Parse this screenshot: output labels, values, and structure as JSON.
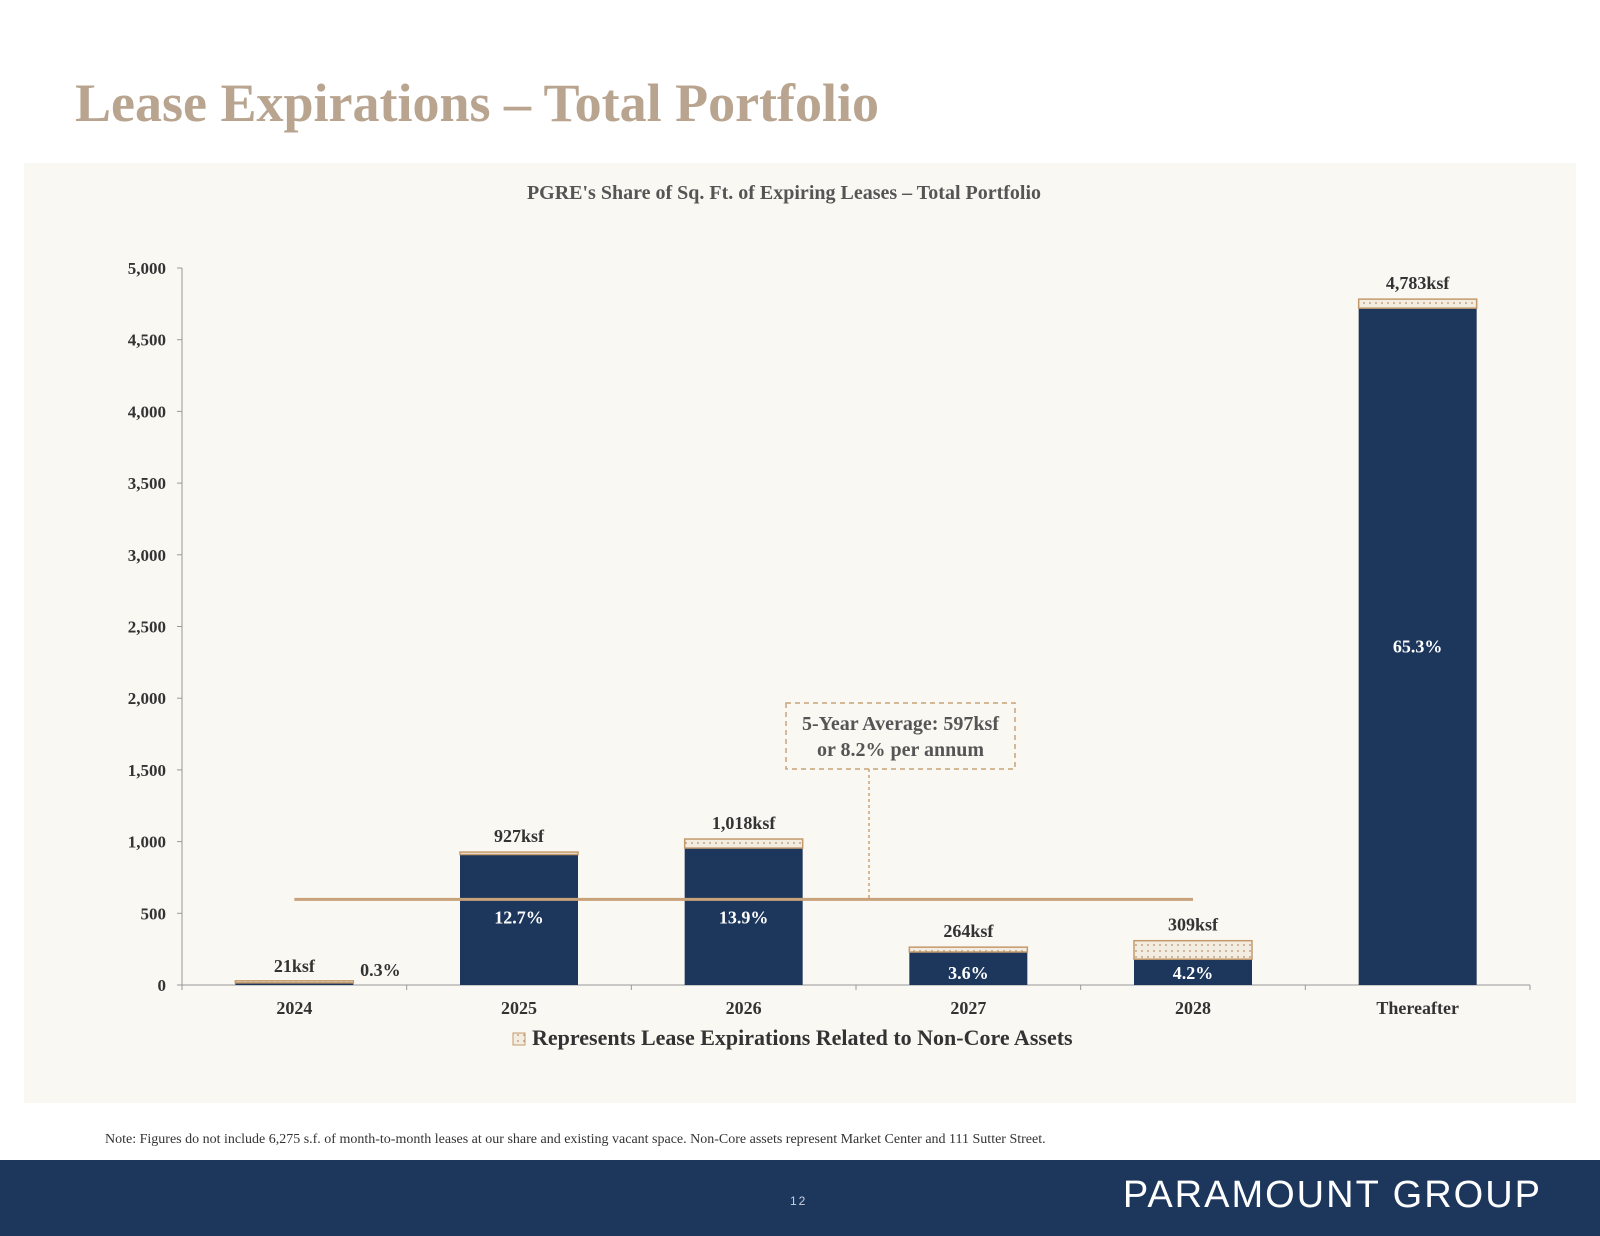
{
  "page": {
    "title": "Lease Expirations – Total Portfolio",
    "note": "Note: Figures do not include 6,275 s.f. of month-to-month leases at our share and existing vacant space.  Non-Core assets represent Market Center and 111 Sutter Street.",
    "page_number": "12",
    "brand": "PARAMOUNT GROUP"
  },
  "colors": {
    "core_bar": "#1c365c",
    "noncore_fill": "#f3ece0",
    "noncore_stroke": "#c49a6c",
    "average_line": "#c8a27a",
    "title": "#b8a48f",
    "footer": "#1c365c"
  },
  "chart_data": {
    "type": "bar",
    "title": "PGRE's Share of Sq. Ft. of Expiring Leases – Total Portfolio",
    "xlabel": "",
    "ylabel": "",
    "ylim": [
      0,
      5000
    ],
    "yticks": [
      "0",
      "500",
      "1,000",
      "1,500",
      "2,000",
      "2,500",
      "3,000",
      "3,500",
      "4,000",
      "4,500",
      "5,000"
    ],
    "categories": [
      "2024",
      "2025",
      "2026",
      "2027",
      "2028",
      "Thereafter"
    ],
    "stacked": true,
    "series": [
      {
        "name": "",
        "values": [
          15,
          910,
          955,
          230,
          180,
          4720
        ]
      },
      {
        "name": "Represents Lease Expirations Related to Non-Core Assets",
        "values": [
          6,
          17,
          63,
          34,
          129,
          63
        ]
      }
    ],
    "totals": [
      21,
      927,
      1018,
      264,
      309,
      4783
    ],
    "total_labels": [
      "21ksf",
      "927ksf",
      "1,018ksf",
      "264ksf",
      "309ksf",
      "4,783ksf"
    ],
    "percent_labels": [
      "0.3%",
      "12.7%",
      "13.9%",
      "3.6%",
      "4.2%",
      "65.3%"
    ],
    "average": {
      "value": 597,
      "line1": "5-Year Average: 597ksf",
      "line2": "or 8.2% per annum"
    },
    "legend": {
      "text": "Represents Lease Expirations Related to Non-Core Assets",
      "position": "bottom"
    },
    "grid": false
  }
}
